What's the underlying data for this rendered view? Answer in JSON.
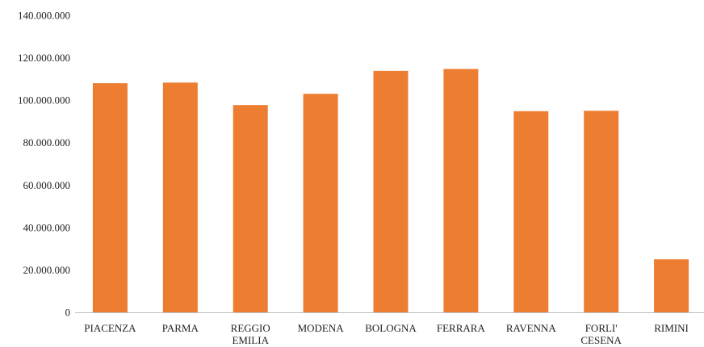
{
  "chart_data": {
    "type": "bar",
    "title": "",
    "xlabel": "",
    "ylabel": "",
    "categories": [
      [
        "PIACENZA"
      ],
      [
        "PARMA"
      ],
      [
        "REGGIO",
        "EMILIA"
      ],
      [
        "MODENA"
      ],
      [
        "BOLOGNA"
      ],
      [
        "FERRARA"
      ],
      [
        "RAVENNA"
      ],
      [
        "FORLI'",
        "CESENA"
      ],
      [
        "RIMINI"
      ]
    ],
    "values": [
      108000000,
      108300000,
      97700000,
      103000000,
      113800000,
      114700000,
      94800000,
      95000000,
      25000000
    ],
    "ylim": [
      0,
      140000000
    ],
    "yticks": [
      0,
      20000000,
      40000000,
      60000000,
      80000000,
      100000000,
      120000000,
      140000000
    ],
    "ytick_labels": [
      "0",
      "20.000.000",
      "40.000.000",
      "60.000.000",
      "80.000.000",
      "100.000.000",
      "120.000.000",
      "140.000.000"
    ],
    "bar_color": "#ED7D31",
    "axis_color": "#BFBFBF",
    "grid": false,
    "legend": "none"
  }
}
